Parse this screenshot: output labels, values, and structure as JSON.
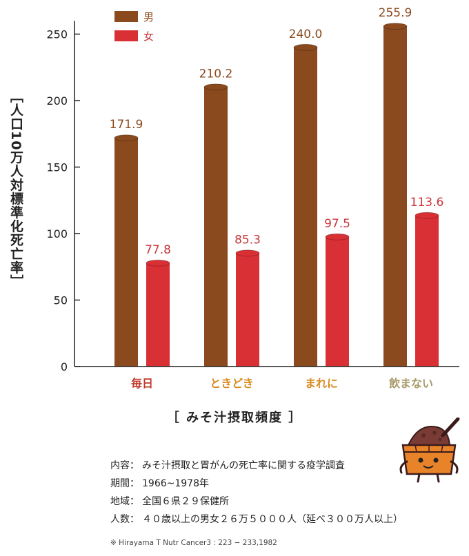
{
  "chart_data": {
    "type": "bar",
    "categories": [
      "毎日",
      "ときどき",
      "まれに",
      "飲まない"
    ],
    "category_colors": [
      "#c0392b",
      "#d98a1f",
      "#d98a1f",
      "#a89a6c"
    ],
    "series": [
      {
        "name": "男",
        "values": [
          171.9,
          210.2,
          240.0,
          255.9
        ],
        "labels": [
          "171.9",
          "210.2",
          "240.0",
          "255.9"
        ],
        "color": "#8b4a1e",
        "label_color": "#8b4a1e"
      },
      {
        "name": "女",
        "values": [
          77.8,
          85.3,
          97.5,
          113.6
        ],
        "labels": [
          "77.8",
          "85.3",
          "97.5",
          "113.6"
        ],
        "color": "#d93035",
        "label_color": "#c9353a"
      }
    ],
    "ylabel": "［人口10万人対標準化死亡率］",
    "xlabel": "［ みそ汁摂取頻度 ］",
    "ylim": [
      0,
      260
    ],
    "yticks": [
      0,
      50,
      100,
      150,
      200,
      250
    ],
    "grid": false,
    "legend_position": "top-left"
  },
  "info": {
    "rows": [
      {
        "key": "内容：",
        "value": "みそ汁摂取と胃がんの死亡率に関する疫学調査"
      },
      {
        "key": "期間：",
        "value": "1966~1978年"
      },
      {
        "key": "地域：",
        "value": "全国６県２９保健所"
      },
      {
        "key": "人数：",
        "value": "４０歳以上の男女２６万５０００人（延べ３００万人以上）"
      }
    ],
    "footnote": "※ Hirayama T Nutr Cancer3 : 223 − 233,1982"
  }
}
